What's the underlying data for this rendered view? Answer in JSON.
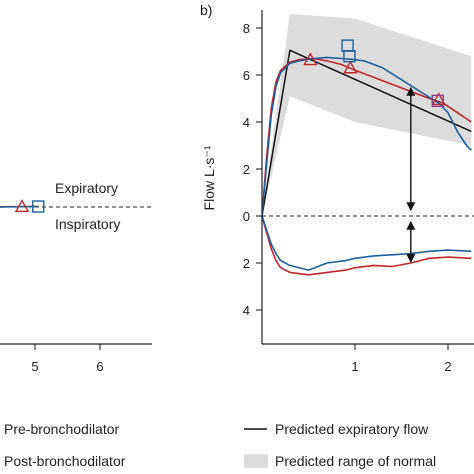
{
  "chart_data": [
    {
      "type": "line",
      "panel": "a",
      "xlim": [
        3.9,
        7.0
      ],
      "x_ticks": [
        5,
        6
      ],
      "annotations": [
        "Expiratory",
        "Inspiratory"
      ],
      "series": [
        {
          "x": [
            3.9,
            4.3,
            4.8,
            5.05
          ],
          "y": [
            0.05,
            0.0,
            0.02,
            0.02
          ],
          "color": "#c0272d"
        },
        {
          "x": [
            3.9,
            4.5,
            5.05
          ],
          "y": [
            0.05,
            0.0,
            0.02
          ],
          "color": "#1f5f99"
        }
      ],
      "markers": [
        {
          "shape": "triangle",
          "x": 4.8,
          "y": 0.02,
          "color": "#c0272d"
        },
        {
          "shape": "square",
          "x": 5.05,
          "y": 0.02,
          "color": "#1f5f99"
        }
      ]
    },
    {
      "type": "line",
      "panel": "b",
      "ylabel": "Flow L·s⁻¹",
      "ylim": [
        -5.3,
        8.8
      ],
      "xlim": [
        0,
        2.25
      ],
      "y_ticks": [
        {
          "value": 8,
          "label": "8"
        },
        {
          "value": 6,
          "label": "6"
        },
        {
          "value": 4,
          "label": "4"
        },
        {
          "value": 2,
          "label": "2"
        },
        {
          "value": 0,
          "label": "0"
        },
        {
          "value": -2,
          "label": "2"
        },
        {
          "value": -4,
          "label": "4"
        }
      ],
      "x_ticks": [
        1,
        2
      ],
      "predicted_range": {
        "upper": [
          [
            0,
            0
          ],
          [
            0.3,
            8.6
          ],
          [
            1.0,
            8.4
          ],
          [
            2.25,
            6.8
          ]
        ],
        "lower": [
          [
            2.25,
            3.0
          ],
          [
            1.0,
            4.0
          ],
          [
            0.3,
            5.1
          ],
          [
            0,
            0
          ]
        ]
      },
      "series": [
        {
          "color": "#111111",
          "x": [
            0,
            0.3,
            2.25
          ],
          "y": [
            0,
            7.05,
            3.6
          ]
        },
        {
          "color": "#c0272d",
          "x": [
            0,
            0.05,
            0.1,
            0.15,
            0.2,
            0.3,
            0.4,
            0.55,
            0.7,
            0.85,
            1.0,
            1.2,
            1.4,
            1.6,
            1.8,
            1.95,
            2.1,
            2.25
          ],
          "y": [
            0,
            2.5,
            4.6,
            5.7,
            6.2,
            6.55,
            6.65,
            6.7,
            6.6,
            6.45,
            6.2,
            5.9,
            5.6,
            5.3,
            5.0,
            4.8,
            4.4,
            4.0
          ]
        },
        {
          "color": "#1f5f99",
          "x": [
            0,
            0.05,
            0.1,
            0.15,
            0.2,
            0.3,
            0.4,
            0.55,
            0.7,
            0.85,
            1.0,
            1.1,
            1.3,
            1.5,
            1.7,
            1.9,
            2.0,
            2.1,
            2.2,
            2.25
          ],
          "y": [
            0,
            2.2,
            4.3,
            5.5,
            6.1,
            6.5,
            6.6,
            6.7,
            6.75,
            6.7,
            6.65,
            6.6,
            6.3,
            5.8,
            5.3,
            4.8,
            4.4,
            3.6,
            3.0,
            2.8
          ]
        },
        {
          "color": "#c0272d",
          "x": [
            0,
            0.05,
            0.1,
            0.15,
            0.2,
            0.3,
            0.5,
            0.7,
            0.9,
            1.0,
            1.2,
            1.4,
            1.6,
            1.8,
            2.0,
            2.25
          ],
          "y": [
            0,
            -0.7,
            -1.4,
            -1.9,
            -2.2,
            -2.4,
            -2.5,
            -2.4,
            -2.3,
            -2.2,
            -2.1,
            -2.15,
            -2.0,
            -1.8,
            -1.75,
            -1.8
          ]
        },
        {
          "color": "#1f5f99",
          "x": [
            0,
            0.05,
            0.1,
            0.15,
            0.2,
            0.3,
            0.5,
            0.7,
            0.9,
            1.0,
            1.2,
            1.4,
            1.6,
            1.8,
            2.0,
            2.25
          ],
          "y": [
            0,
            -0.6,
            -1.2,
            -1.6,
            -1.9,
            -2.1,
            -2.3,
            -2.0,
            -1.9,
            -1.8,
            -1.7,
            -1.65,
            -1.6,
            -1.5,
            -1.45,
            -1.5
          ]
        }
      ],
      "markers": [
        {
          "shape": "triangle",
          "x": 0.52,
          "y": 6.65,
          "color": "#c0272d"
        },
        {
          "shape": "triangle",
          "x": 0.95,
          "y": 6.3,
          "color": "#c0272d"
        },
        {
          "shape": "triangle",
          "x": 1.9,
          "y": 4.95,
          "color": "#c0272d"
        },
        {
          "shape": "square",
          "x": 0.92,
          "y": 7.25,
          "color": "#1f5f99"
        },
        {
          "shape": "square",
          "x": 0.94,
          "y": 6.8,
          "color": "#1f5f99"
        },
        {
          "shape": "square",
          "x": 1.89,
          "y": 4.9,
          "color": "#8a3f88"
        }
      ],
      "arrows": [
        {
          "x": 1.6,
          "from": 5.5,
          "to": 0.2
        },
        {
          "x": 1.6,
          "from": -0.2,
          "to": -2.0
        }
      ]
    }
  ],
  "figure": {
    "panel_label": "b)",
    "legend": [
      {
        "label": "Pre-bronchodilator",
        "swatch": "none"
      },
      {
        "label": "Post-bronchodilator",
        "swatch": "none"
      },
      {
        "label": "Predicted expiratory flow",
        "swatch": "line",
        "color": "#111111"
      },
      {
        "label": "Predicted range of normal",
        "swatch": "patch",
        "color": "#dcdcdc"
      }
    ]
  }
}
